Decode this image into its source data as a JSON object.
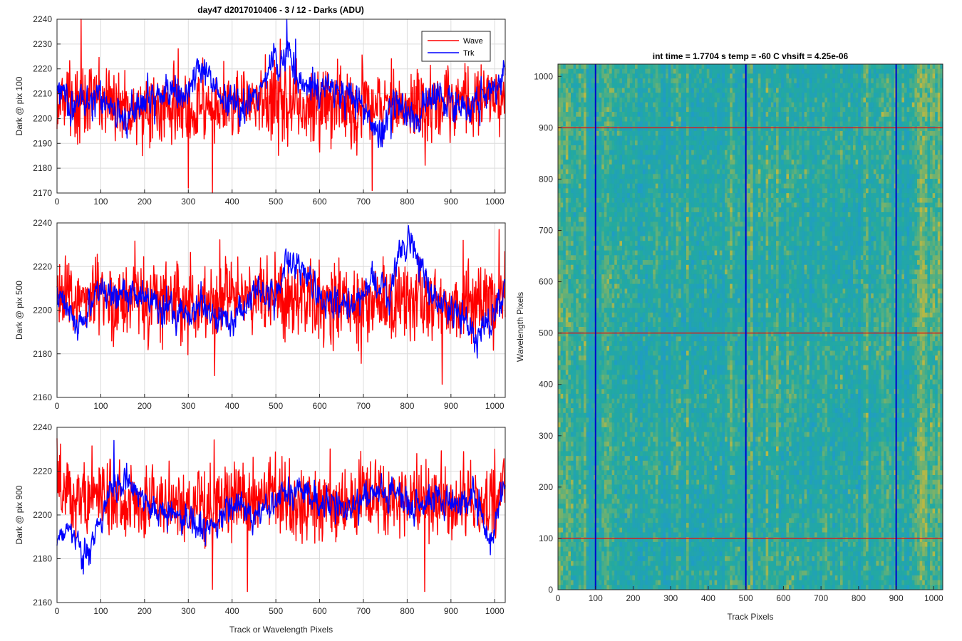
{
  "figure": {
    "title": "day47 d2017010406 - 3 / 12 - Darks (ADU)"
  },
  "chart_data": [
    {
      "type": "line",
      "title": "day47 d2017010406 - 3 / 12 - Darks (ADU)",
      "xlabel": "",
      "ylabel": "Dark @ pix 100",
      "xlim": [
        0,
        1024
      ],
      "ylim": [
        2170,
        2240
      ],
      "xticks": [
        0,
        100,
        200,
        300,
        400,
        500,
        600,
        700,
        800,
        900,
        1000
      ],
      "yticks": [
        2170,
        2180,
        2190,
        2200,
        2210,
        2220,
        2230,
        2240
      ],
      "grid": true,
      "legend": {
        "position": "top-right",
        "entries": [
          "Wave",
          "Trk"
        ]
      },
      "series": [
        {
          "name": "Wave",
          "color": "#ff0000",
          "mean": 2206,
          "noise_sd": 7.5,
          "smooth_points": [
            [
              0,
              2208
            ],
            [
              100,
              2207
            ],
            [
              200,
              2204
            ],
            [
              300,
              2203
            ],
            [
              400,
              2206
            ],
            [
              500,
              2207
            ],
            [
              600,
              2206
            ],
            [
              700,
              2205
            ],
            [
              800,
              2205
            ],
            [
              900,
              2207
            ],
            [
              1024,
              2210
            ]
          ],
          "marked_points": [
            [
              55,
              2240
            ],
            [
              355,
              2170
            ],
            [
              510,
              2232
            ],
            [
              720,
              2171
            ],
            [
              300,
              2172
            ]
          ]
        },
        {
          "name": "Trk",
          "color": "#0000ff",
          "mean": 2208,
          "noise_sd": 4.0,
          "smooth_points": [
            [
              0,
              2212
            ],
            [
              30,
              2205
            ],
            [
              60,
              2208
            ],
            [
              100,
              2210
            ],
            [
              150,
              2200
            ],
            [
              200,
              2206
            ],
            [
              250,
              2212
            ],
            [
              300,
              2213
            ],
            [
              340,
              2222
            ],
            [
              380,
              2206
            ],
            [
              420,
              2204
            ],
            [
              460,
              2208
            ],
            [
              490,
              2222
            ],
            [
              530,
              2224
            ],
            [
              560,
              2214
            ],
            [
              600,
              2212
            ],
            [
              650,
              2210
            ],
            [
              700,
              2205
            ],
            [
              730,
              2193
            ],
            [
              770,
              2206
            ],
            [
              800,
              2200
            ],
            [
              830,
              2202
            ],
            [
              870,
              2210
            ],
            [
              930,
              2205
            ],
            [
              980,
              2208
            ],
            [
              1024,
              2218
            ]
          ],
          "marked_points": [
            [
              525,
              2240
            ],
            [
              545,
              2232
            ]
          ]
        }
      ]
    },
    {
      "type": "line",
      "title": "",
      "xlabel": "",
      "ylabel": "Dark @ pix 500",
      "xlim": [
        0,
        1024
      ],
      "ylim": [
        2160,
        2240
      ],
      "xticks": [
        0,
        100,
        200,
        300,
        400,
        500,
        600,
        700,
        800,
        900,
        1000
      ],
      "yticks": [
        2160,
        2180,
        2200,
        2220,
        2240
      ],
      "grid": true,
      "series": [
        {
          "color": "#ff0000",
          "mean": 2205,
          "noise_sd": 9.0,
          "smooth_points": [
            [
              0,
              2206
            ],
            [
              100,
              2205
            ],
            [
              200,
              2205
            ],
            [
              300,
              2203
            ],
            [
              400,
              2207
            ],
            [
              500,
              2206
            ],
            [
              600,
              2205
            ],
            [
              700,
              2203
            ],
            [
              800,
              2204
            ],
            [
              900,
              2203
            ],
            [
              1024,
              2206
            ]
          ],
          "marked_points": [
            [
              880,
              2166
            ],
            [
              360,
              2170
            ],
            [
              1010,
              2237
            ]
          ]
        },
        {
          "color": "#0000ff",
          "mean": 2205,
          "noise_sd": 4.0,
          "smooth_points": [
            [
              0,
              2208
            ],
            [
              50,
              2193
            ],
            [
              100,
              2208
            ],
            [
              150,
              2210
            ],
            [
              200,
              2205
            ],
            [
              250,
              2200
            ],
            [
              300,
              2198
            ],
            [
              350,
              2202
            ],
            [
              400,
              2192
            ],
            [
              450,
              2210
            ],
            [
              500,
              2205
            ],
            [
              520,
              2222
            ],
            [
              560,
              2218
            ],
            [
              600,
              2205
            ],
            [
              650,
              2203
            ],
            [
              700,
              2205
            ],
            [
              720,
              2213
            ],
            [
              760,
              2205
            ],
            [
              780,
              2225
            ],
            [
              810,
              2232
            ],
            [
              850,
              2208
            ],
            [
              880,
              2203
            ],
            [
              920,
              2195
            ],
            [
              960,
              2188
            ],
            [
              990,
              2195
            ],
            [
              1024,
              2210
            ]
          ],
          "marked_points": [
            [
              805,
              2234
            ],
            [
              960,
              2178
            ]
          ]
        }
      ]
    },
    {
      "type": "line",
      "title": "",
      "xlabel": "Track or Wavelength Pixels",
      "ylabel": "Dark @ pix 900",
      "xlim": [
        0,
        1024
      ],
      "ylim": [
        2160,
        2240
      ],
      "xticks": [
        0,
        100,
        200,
        300,
        400,
        500,
        600,
        700,
        800,
        900,
        1000
      ],
      "yticks": [
        2160,
        2180,
        2200,
        2220,
        2240
      ],
      "grid": true,
      "series": [
        {
          "color": "#ff0000",
          "mean": 2206,
          "noise_sd": 8.5,
          "smooth_points": [
            [
              0,
              2210
            ],
            [
              100,
              2208
            ],
            [
              200,
              2206
            ],
            [
              300,
              2202
            ],
            [
              400,
              2206
            ],
            [
              500,
              2206
            ],
            [
              600,
              2205
            ],
            [
              700,
              2206
            ],
            [
              800,
              2206
            ],
            [
              900,
              2205
            ],
            [
              1024,
              2208
            ]
          ],
          "marked_points": [
            [
              355,
              2166
            ],
            [
              435,
              2165
            ],
            [
              840,
              2165
            ],
            [
              0,
              2235
            ]
          ]
        },
        {
          "color": "#0000ff",
          "mean": 2203,
          "noise_sd": 4.0,
          "smooth_points": [
            [
              0,
              2190
            ],
            [
              30,
              2195
            ],
            [
              60,
              2178
            ],
            [
              90,
              2192
            ],
            [
              120,
              2212
            ],
            [
              160,
              2215
            ],
            [
              200,
              2205
            ],
            [
              250,
              2200
            ],
            [
              300,
              2198
            ],
            [
              350,
              2193
            ],
            [
              400,
              2205
            ],
            [
              450,
              2200
            ],
            [
              500,
              2208
            ],
            [
              550,
              2212
            ],
            [
              600,
              2206
            ],
            [
              650,
              2202
            ],
            [
              700,
              2206
            ],
            [
              750,
              2212
            ],
            [
              800,
              2205
            ],
            [
              850,
              2208
            ],
            [
              900,
              2205
            ],
            [
              950,
              2210
            ],
            [
              990,
              2188
            ],
            [
              1024,
              2215
            ]
          ],
          "marked_points": [
            [
              130,
              2234
            ],
            [
              60,
              2173
            ]
          ]
        }
      ]
    },
    {
      "type": "heatmap",
      "title": "int time = 1.7704 s   temp = -60 C   vhsift = 4.25e-06",
      "xlabel": "Track Pixels",
      "ylabel": "Wavelength Pixels",
      "xlim": [
        0,
        1024
      ],
      "ylim": [
        0,
        1024
      ],
      "xticks": [
        0,
        100,
        200,
        300,
        400,
        500,
        600,
        700,
        800,
        900,
        1000
      ],
      "yticks": [
        0,
        100,
        200,
        300,
        400,
        500,
        600,
        700,
        800,
        900,
        1000
      ],
      "colormap": "parula",
      "colors": {
        "low": "#1f9bc8",
        "mid": "#23aa9f",
        "high": "#b7b845"
      },
      "vertical_lines": {
        "x": [
          100,
          500,
          900
        ],
        "color": "#0000d0"
      },
      "horizontal_lines": {
        "y": [
          100,
          500,
          900
        ],
        "color": "#d21f1f"
      }
    }
  ]
}
